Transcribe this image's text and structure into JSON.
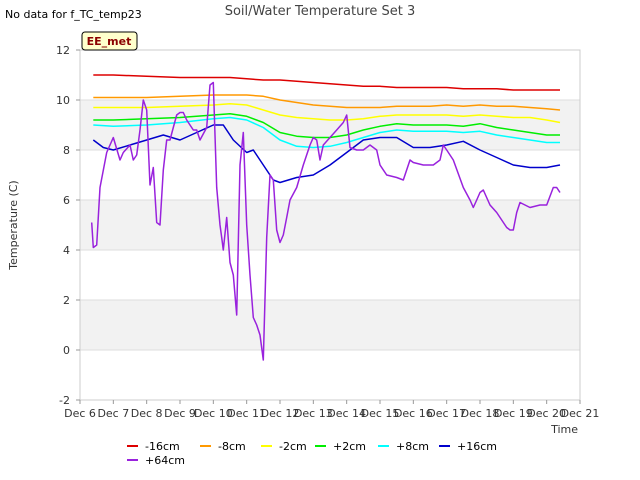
{
  "no_data_note": "No data for f_TC_temp23",
  "chart_data": {
    "type": "line",
    "title": "Soil/Water Temperature Set 3",
    "xlabel": "Time",
    "ylabel": "Temperature (C)",
    "badge": "EE_met",
    "xlim": [
      6,
      21
    ],
    "ylim": [
      -2,
      12
    ],
    "x_ticks": [
      6,
      7,
      8,
      9,
      10,
      11,
      12,
      13,
      14,
      15,
      16,
      17,
      18,
      19,
      20,
      21
    ],
    "x_tick_labels": [
      "Dec 6",
      "Dec 7",
      "Dec 8",
      "Dec 9",
      "Dec 10",
      "Dec 11",
      "Dec 12",
      "Dec 13",
      "Dec 14",
      "Dec 15",
      "Dec 16",
      "Dec 17",
      "Dec 18",
      "Dec 19",
      "Dec 20",
      "Dec 21"
    ],
    "y_ticks": [
      -2,
      0,
      2,
      4,
      6,
      8,
      10,
      12
    ],
    "y_tick_labels": [
      "-2",
      "0",
      "2",
      "4",
      "6",
      "8",
      "10",
      "12"
    ],
    "shaded_bands": [
      [
        0,
        2
      ],
      [
        4,
        6
      ],
      [
        8,
        10
      ]
    ],
    "series": [
      {
        "name": "-16cm",
        "color": "#dd0000",
        "x": [
          6.4,
          7,
          8,
          9,
          10,
          10.5,
          11,
          11.5,
          12,
          12.5,
          13,
          13.5,
          14,
          14.5,
          15,
          15.5,
          16,
          16.5,
          17,
          17.5,
          18,
          18.5,
          19,
          19.5,
          20,
          20.4
        ],
        "y": [
          11.0,
          11.0,
          10.95,
          10.9,
          10.9,
          10.9,
          10.85,
          10.8,
          10.8,
          10.75,
          10.7,
          10.65,
          10.6,
          10.55,
          10.55,
          10.5,
          10.5,
          10.5,
          10.5,
          10.45,
          10.45,
          10.45,
          10.4,
          10.4,
          10.4,
          10.4
        ]
      },
      {
        "name": "-8cm",
        "color": "#ff9900",
        "x": [
          6.4,
          7,
          8,
          9,
          10,
          10.5,
          11,
          11.5,
          12,
          12.5,
          13,
          13.5,
          14,
          14.5,
          15,
          15.5,
          16,
          16.5,
          17,
          17.5,
          18,
          18.5,
          19,
          19.5,
          20,
          20.4
        ],
        "y": [
          10.1,
          10.1,
          10.1,
          10.15,
          10.2,
          10.2,
          10.2,
          10.15,
          10.0,
          9.9,
          9.8,
          9.75,
          9.7,
          9.7,
          9.7,
          9.75,
          9.75,
          9.75,
          9.8,
          9.75,
          9.8,
          9.75,
          9.75,
          9.7,
          9.65,
          9.6
        ]
      },
      {
        "name": "-2cm",
        "color": "#ffff00",
        "x": [
          6.4,
          7,
          8,
          9,
          10,
          10.5,
          11,
          11.5,
          12,
          12.5,
          13,
          13.5,
          14,
          14.5,
          15,
          15.5,
          16,
          16.5,
          17,
          17.5,
          18,
          18.5,
          19,
          19.5,
          20,
          20.4
        ],
        "y": [
          9.7,
          9.7,
          9.7,
          9.75,
          9.8,
          9.85,
          9.8,
          9.6,
          9.4,
          9.3,
          9.25,
          9.2,
          9.2,
          9.25,
          9.35,
          9.4,
          9.4,
          9.4,
          9.4,
          9.35,
          9.4,
          9.35,
          9.3,
          9.3,
          9.2,
          9.1
        ]
      },
      {
        "name": "+2cm",
        "color": "#00ee00",
        "x": [
          6.4,
          7,
          8,
          9,
          10,
          10.5,
          11,
          11.5,
          12,
          12.5,
          13,
          13.5,
          14,
          14.5,
          15,
          15.5,
          16,
          16.5,
          17,
          17.5,
          18,
          18.5,
          19,
          19.5,
          20,
          20.4
        ],
        "y": [
          9.2,
          9.2,
          9.25,
          9.3,
          9.4,
          9.45,
          9.35,
          9.1,
          8.7,
          8.55,
          8.5,
          8.5,
          8.6,
          8.8,
          8.95,
          9.05,
          9.0,
          9.0,
          9.0,
          8.95,
          9.05,
          8.9,
          8.8,
          8.7,
          8.6,
          8.6
        ]
      },
      {
        "name": "+8cm",
        "color": "#00ffff",
        "x": [
          6.4,
          7,
          8,
          9,
          10,
          10.5,
          11,
          11.5,
          12,
          12.5,
          13,
          13.5,
          14,
          14.5,
          15,
          15.5,
          16,
          16.5,
          17,
          17.5,
          18,
          18.5,
          19,
          19.5,
          20,
          20.4
        ],
        "y": [
          9.0,
          8.95,
          9.0,
          9.1,
          9.25,
          9.3,
          9.2,
          8.9,
          8.4,
          8.15,
          8.1,
          8.15,
          8.3,
          8.5,
          8.7,
          8.8,
          8.75,
          8.75,
          8.75,
          8.7,
          8.75,
          8.6,
          8.5,
          8.4,
          8.3,
          8.3
        ]
      },
      {
        "name": "+16cm",
        "color": "#0000cc",
        "x": [
          6.4,
          6.7,
          7,
          7.5,
          8,
          8.5,
          9,
          9.5,
          10,
          10.3,
          10.6,
          11,
          11.2,
          11.5,
          11.8,
          12,
          12.5,
          13,
          13.5,
          14,
          14.5,
          15,
          15.5,
          16,
          16.5,
          17,
          17.5,
          18,
          18.5,
          19,
          19.5,
          20,
          20.4
        ],
        "y": [
          8.4,
          8.1,
          8.0,
          8.2,
          8.4,
          8.6,
          8.4,
          8.7,
          9.0,
          9.0,
          8.4,
          7.9,
          8.0,
          7.4,
          6.8,
          6.7,
          6.9,
          7.0,
          7.4,
          7.9,
          8.4,
          8.5,
          8.5,
          8.1,
          8.1,
          8.2,
          8.35,
          8.0,
          7.7,
          7.4,
          7.3,
          7.3,
          7.4
        ]
      },
      {
        "name": "+64cm",
        "color": "#9922dd",
        "x": [
          6.35,
          6.4,
          6.5,
          6.6,
          6.8,
          7.0,
          7.2,
          7.3,
          7.5,
          7.6,
          7.7,
          7.8,
          7.9,
          8.0,
          8.1,
          8.2,
          8.3,
          8.4,
          8.5,
          8.6,
          8.7,
          8.8,
          8.9,
          9.0,
          9.1,
          9.2,
          9.4,
          9.5,
          9.6,
          9.8,
          9.9,
          10.0,
          10.1,
          10.2,
          10.25,
          10.3,
          10.4,
          10.5,
          10.6,
          10.7,
          10.8,
          10.9,
          11.0,
          11.1,
          11.2,
          11.3,
          11.4,
          11.5,
          11.6,
          11.7,
          11.8,
          11.9,
          12.0,
          12.1,
          12.2,
          12.3,
          12.5,
          12.7,
          12.9,
          13.0,
          13.1,
          13.2,
          13.3,
          13.5,
          13.7,
          13.9,
          14.0,
          14.1,
          14.3,
          14.5,
          14.7,
          14.9,
          15.0,
          15.2,
          15.5,
          15.7,
          15.9,
          16.0,
          16.3,
          16.6,
          16.8,
          16.9,
          17.0,
          17.2,
          17.5,
          17.7,
          17.8,
          17.9,
          18.0,
          18.1,
          18.3,
          18.5,
          18.8,
          18.9,
          19.0,
          19.1,
          19.2,
          19.5,
          19.8,
          20.0,
          20.2,
          20.3,
          20.4
        ],
        "y": [
          5.1,
          4.1,
          4.2,
          6.5,
          7.9,
          8.5,
          7.6,
          7.9,
          8.2,
          7.6,
          7.8,
          8.8,
          10.0,
          9.6,
          6.6,
          7.3,
          5.1,
          5.0,
          7.2,
          8.4,
          8.4,
          8.9,
          9.4,
          9.5,
          9.5,
          9.2,
          8.8,
          8.8,
          8.4,
          8.9,
          10.6,
          10.7,
          6.5,
          5.0,
          4.5,
          4.0,
          5.3,
          3.5,
          3.0,
          1.4,
          7.4,
          8.7,
          5.0,
          3.0,
          1.3,
          1.0,
          0.6,
          -0.4,
          4.5,
          7.0,
          6.8,
          4.8,
          4.3,
          4.6,
          5.3,
          6.0,
          6.5,
          7.4,
          8.2,
          8.5,
          8.4,
          7.6,
          8.2,
          8.5,
          8.8,
          9.1,
          9.4,
          8.1,
          8.0,
          8.0,
          8.2,
          8.0,
          7.4,
          7.0,
          6.9,
          6.8,
          7.6,
          7.5,
          7.4,
          7.4,
          7.6,
          8.2,
          8.0,
          7.6,
          6.5,
          6.0,
          5.7,
          6.0,
          6.3,
          6.4,
          5.8,
          5.5,
          4.9,
          4.8,
          4.8,
          5.5,
          5.9,
          5.7,
          5.8,
          5.8,
          6.5,
          6.5,
          6.3
        ]
      }
    ]
  }
}
